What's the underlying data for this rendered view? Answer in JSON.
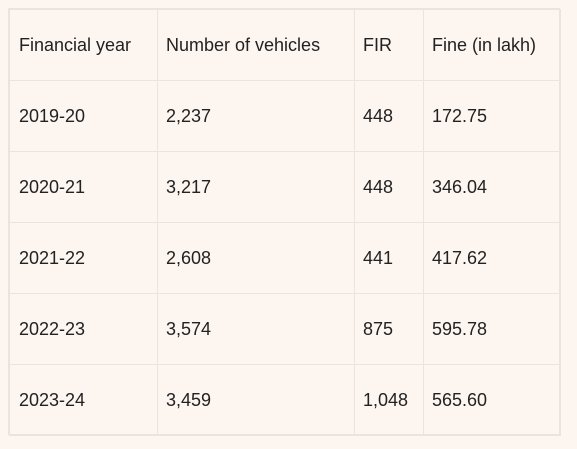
{
  "table": {
    "headers": [
      "Financial year",
      "Number of vehicles",
      "FIR",
      "Fine (in lakh)"
    ],
    "rows": [
      [
        "2019-20",
        "2,237",
        "448",
        "172.75"
      ],
      [
        "2020-21",
        "3,217",
        "448",
        "346.04"
      ],
      [
        "2021-22",
        "2,608",
        "441",
        "417.62"
      ],
      [
        "2022-23",
        "3,574",
        "875",
        "595.78"
      ],
      [
        "2023-24",
        "3,459",
        "1,048",
        "565.60"
      ]
    ]
  },
  "colors": {
    "background": "#fcf5f0",
    "border": "#ece3dc",
    "text": "#222222"
  }
}
